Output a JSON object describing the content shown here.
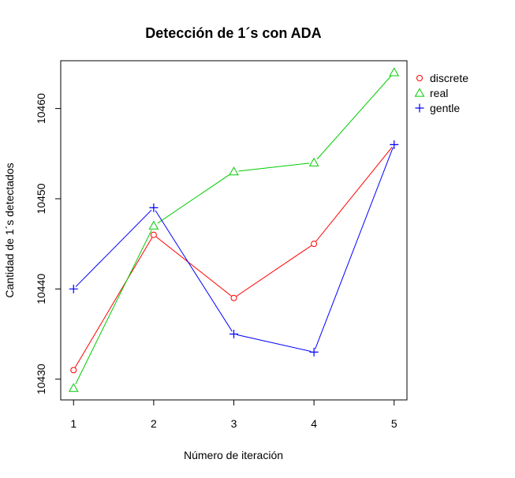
{
  "chart_data": {
    "type": "line",
    "title": "Detección de 1´s con ADA",
    "xlabel": "Número de iteración",
    "ylabel": "Cantidad de 1´s  detectados",
    "x": [
      1,
      2,
      3,
      4,
      5
    ],
    "x_ticks": [
      "1",
      "2",
      "3",
      "4",
      "5"
    ],
    "y_ticks": [
      "10430",
      "10440",
      "10450",
      "10460"
    ],
    "xlim": [
      0.84,
      5.16
    ],
    "ylim": [
      10427.7,
      10465.3
    ],
    "grid": false,
    "legend_position": "top-right outside",
    "series": [
      {
        "name": "discrete",
        "values": [
          10431,
          10446,
          10439,
          10445,
          10456
        ],
        "color": "#ff0000",
        "marker": "circle"
      },
      {
        "name": "real",
        "values": [
          10429,
          10447,
          10453,
          10454,
          10464
        ],
        "color": "#00cc00",
        "marker": "triangle"
      },
      {
        "name": "gentle",
        "values": [
          10440,
          10449,
          10435,
          10433,
          10456
        ],
        "color": "#0000ff",
        "marker": "plus"
      }
    ]
  }
}
